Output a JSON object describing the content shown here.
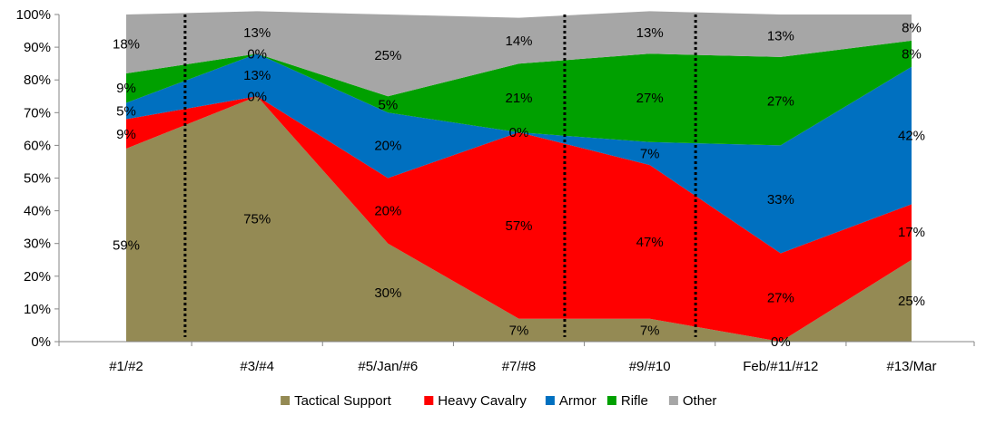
{
  "chart_data": {
    "type": "area",
    "stacked": true,
    "percent_stacked": true,
    "title": "",
    "xlabel": "",
    "ylabel": "",
    "ylim": [
      0,
      100
    ],
    "y_ticks": [
      "0%",
      "10%",
      "20%",
      "30%",
      "40%",
      "50%",
      "60%",
      "70%",
      "80%",
      "90%",
      "100%"
    ],
    "categories": [
      "#1/#2",
      "#3/#4",
      "#5/Jan/#6",
      "#7/#8",
      "#9/#10",
      "Feb/#11/#12",
      "#13/Mar"
    ],
    "series": [
      {
        "name": "Tactical Support",
        "color": "#948A54",
        "values": [
          59,
          75,
          30,
          7,
          7,
          0,
          25
        ],
        "labels": [
          "59%",
          "75%",
          "30%",
          "7%",
          "7%",
          "0%",
          "25%"
        ]
      },
      {
        "name": "Heavy Cavalry",
        "color": "#FF0000",
        "values": [
          9,
          0,
          20,
          57,
          47,
          27,
          17
        ],
        "labels": [
          "9%",
          "0%",
          "20%",
          "57%",
          "47%",
          "27%",
          "17%"
        ]
      },
      {
        "name": "Armor",
        "color": "#0070C0",
        "values": [
          5,
          13,
          20,
          0,
          7,
          33,
          42
        ],
        "labels": [
          "5%",
          "13%",
          "20%",
          "0%",
          "7%",
          "33%",
          "42%"
        ]
      },
      {
        "name": "Rifle",
        "color": "#00A000",
        "values": [
          9,
          0,
          5,
          21,
          27,
          27,
          8
        ],
        "labels": [
          "9%",
          "0%",
          "5%",
          "21%",
          "27%",
          "27%",
          "8%"
        ]
      },
      {
        "name": "Other",
        "color": "#A6A6A6",
        "values": [
          18,
          13,
          25,
          14,
          13,
          13,
          8
        ],
        "labels": [
          "18%",
          "13%",
          "25%",
          "14%",
          "13%",
          "13%",
          "8%"
        ]
      }
    ],
    "dotted_dividers_after_category_index": [
      0.45,
      3.35,
      4.35
    ],
    "legend_position": "bottom",
    "grid": false
  }
}
